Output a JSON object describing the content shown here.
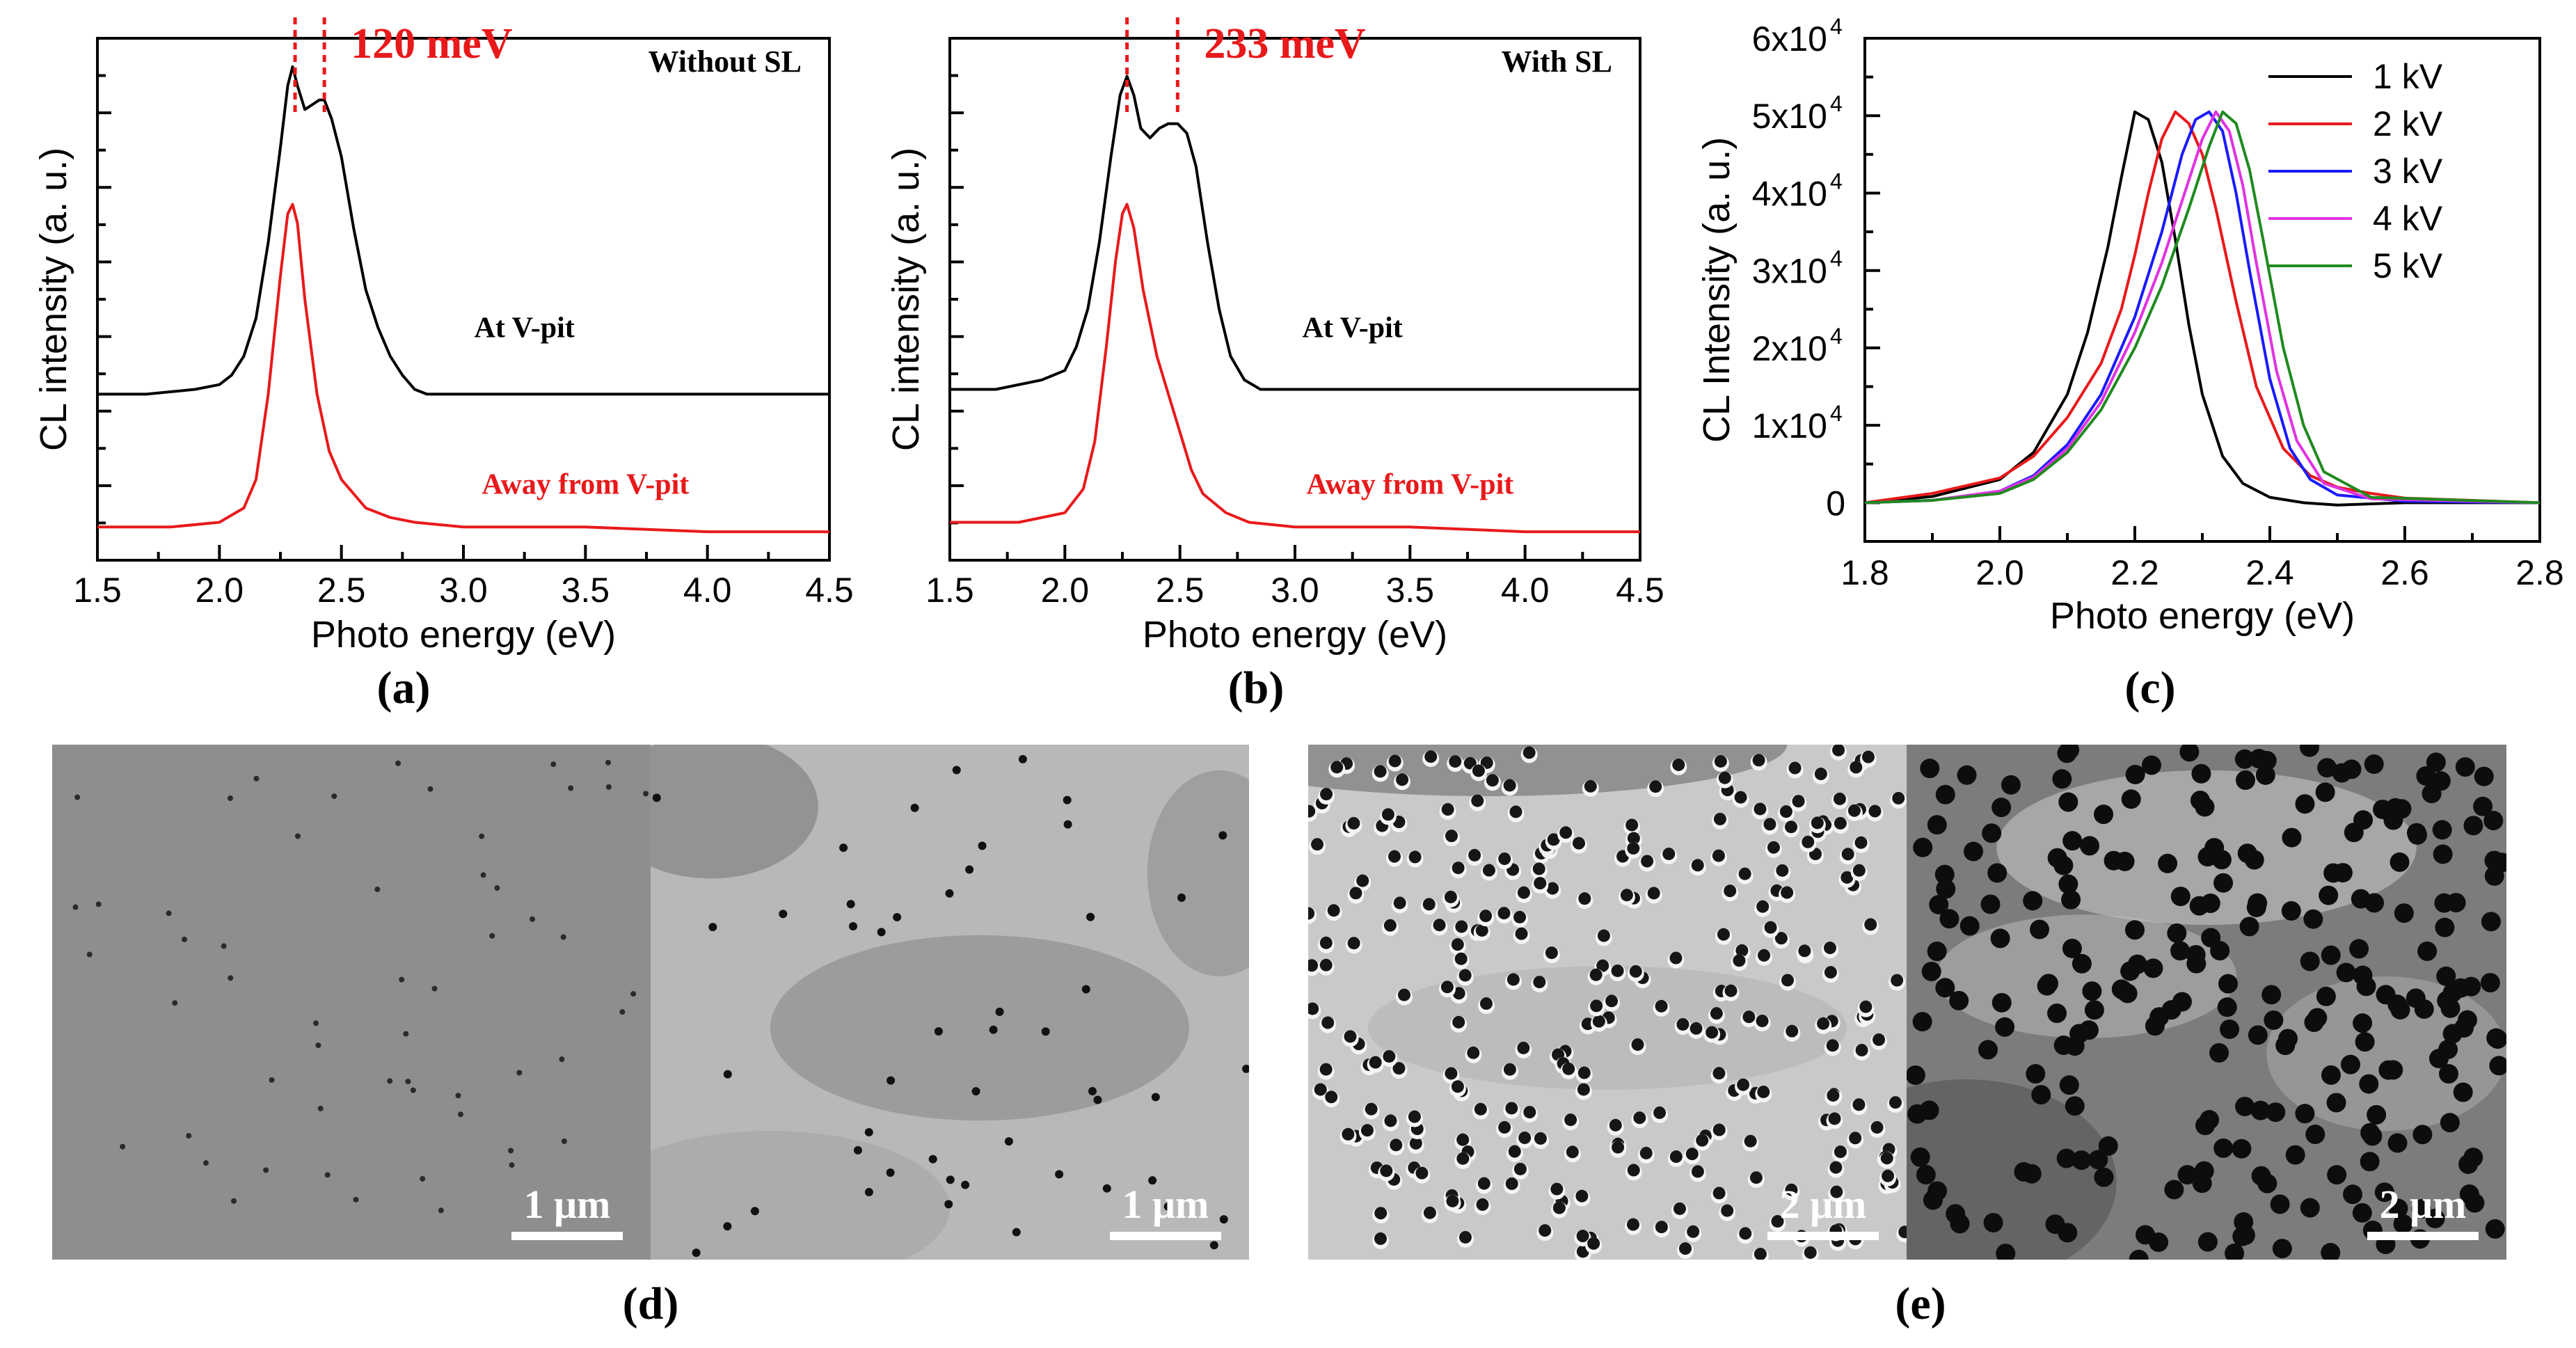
{
  "figure": {
    "panel_labels": {
      "a": "(a)",
      "b": "(b)",
      "c": "(c)",
      "d": "(d)",
      "e": "(e)"
    },
    "scalebars": {
      "d_left": "1 μm",
      "d_right": "1 μm",
      "e_left": "2 μm",
      "e_right": "2 μm"
    },
    "colors": {
      "black": "#000000",
      "red": "#e8191b",
      "blue": "#1a1aff",
      "magenta": "#e033e0",
      "green": "#1f8a1f",
      "annotation_red": "#e8191b"
    }
  },
  "chart_data": [
    {
      "id": "a",
      "type": "line",
      "xlabel": "Photo energy (eV)",
      "ylabel": "CL intensity (a. u.)",
      "xlim": [
        1.5,
        4.5
      ],
      "xticks": [
        "1.5",
        "2.0",
        "2.5",
        "3.0",
        "3.5",
        "4.0",
        "4.5"
      ],
      "title_annotation": "Without SL",
      "peak_marker_text": "120 meV",
      "peak_marker_x": [
        2.31,
        2.43
      ],
      "series": [
        {
          "name": "At V-pit",
          "color": "#000000",
          "x": [
            1.5,
            1.7,
            1.9,
            2.0,
            2.05,
            2.1,
            2.15,
            2.2,
            2.25,
            2.28,
            2.3,
            2.32,
            2.35,
            2.38,
            2.41,
            2.43,
            2.46,
            2.5,
            2.55,
            2.6,
            2.65,
            2.7,
            2.75,
            2.8,
            2.85,
            3.0,
            3.5,
            4.0,
            4.5
          ],
          "y": [
            0.3,
            0.3,
            0.31,
            0.32,
            0.34,
            0.38,
            0.46,
            0.62,
            0.82,
            0.95,
            0.99,
            0.95,
            0.9,
            0.91,
            0.92,
            0.92,
            0.88,
            0.8,
            0.65,
            0.52,
            0.44,
            0.38,
            0.34,
            0.31,
            0.3,
            0.3,
            0.3,
            0.3,
            0.3
          ]
        },
        {
          "name": "Away from V-pit",
          "color": "#e8191b",
          "x": [
            1.5,
            1.8,
            2.0,
            2.1,
            2.15,
            2.2,
            2.25,
            2.28,
            2.3,
            2.32,
            2.35,
            2.4,
            2.45,
            2.5,
            2.6,
            2.7,
            2.8,
            3.0,
            3.5,
            4.0,
            4.5
          ],
          "y": [
            0.02,
            0.02,
            0.03,
            0.06,
            0.12,
            0.3,
            0.55,
            0.68,
            0.7,
            0.66,
            0.5,
            0.3,
            0.18,
            0.12,
            0.06,
            0.04,
            0.03,
            0.02,
            0.02,
            0.01,
            0.01
          ]
        }
      ],
      "labels": {
        "upper": "At V-pit",
        "lower": "Away from V-pit"
      }
    },
    {
      "id": "b",
      "type": "line",
      "xlabel": "Photo energy (eV)",
      "ylabel": "CL intensity (a. u.)",
      "xlim": [
        1.5,
        4.5
      ],
      "xticks": [
        "1.5",
        "2.0",
        "2.5",
        "3.0",
        "3.5",
        "4.0",
        "4.5"
      ],
      "title_annotation": "With SL",
      "peak_marker_text": "233 meV",
      "peak_marker_x": [
        2.27,
        2.49
      ],
      "series": [
        {
          "name": "At V-pit",
          "color": "#000000",
          "x": [
            1.5,
            1.7,
            1.9,
            2.0,
            2.05,
            2.1,
            2.15,
            2.2,
            2.24,
            2.27,
            2.3,
            2.33,
            2.37,
            2.41,
            2.45,
            2.49,
            2.53,
            2.57,
            2.62,
            2.67,
            2.72,
            2.78,
            2.85,
            3.0,
            3.5,
            4.0,
            4.5
          ],
          "y": [
            0.31,
            0.31,
            0.33,
            0.35,
            0.4,
            0.48,
            0.62,
            0.8,
            0.93,
            0.97,
            0.93,
            0.86,
            0.84,
            0.86,
            0.87,
            0.87,
            0.85,
            0.78,
            0.62,
            0.48,
            0.38,
            0.33,
            0.31,
            0.31,
            0.31,
            0.31,
            0.31
          ]
        },
        {
          "name": "Away from V-pit",
          "color": "#e8191b",
          "x": [
            1.5,
            1.8,
            2.0,
            2.08,
            2.13,
            2.18,
            2.22,
            2.25,
            2.27,
            2.3,
            2.34,
            2.4,
            2.45,
            2.5,
            2.55,
            2.6,
            2.7,
            2.8,
            3.0,
            3.5,
            4.0,
            4.5
          ],
          "y": [
            0.03,
            0.03,
            0.05,
            0.1,
            0.2,
            0.4,
            0.58,
            0.68,
            0.7,
            0.65,
            0.52,
            0.38,
            0.3,
            0.22,
            0.14,
            0.09,
            0.05,
            0.03,
            0.02,
            0.02,
            0.01,
            0.01
          ]
        }
      ],
      "labels": {
        "upper": "At V-pit",
        "lower": "Away from V-pit"
      }
    },
    {
      "id": "c",
      "type": "line",
      "xlabel": "Photo energy (eV)",
      "ylabel": "CL Intensity (a. u.)",
      "xlim": [
        1.8,
        2.8
      ],
      "ylim": [
        -5000,
        60000
      ],
      "xticks": [
        "1.8",
        "2.0",
        "2.2",
        "2.4",
        "2.6",
        "2.8"
      ],
      "ytick_values": [
        0,
        10000,
        20000,
        30000,
        40000,
        50000,
        60000
      ],
      "ytick_labels": [
        "0",
        "1x10",
        "2x10",
        "3x10",
        "4x10",
        "5x10",
        "6x10"
      ],
      "ytick_exponent": "4",
      "legend_position": "top-right",
      "series": [
        {
          "name": "1 kV",
          "color": "#000000",
          "x": [
            1.8,
            1.9,
            2.0,
            2.05,
            2.1,
            2.13,
            2.16,
            2.18,
            2.2,
            2.22,
            2.24,
            2.26,
            2.28,
            2.3,
            2.33,
            2.36,
            2.4,
            2.45,
            2.5,
            2.6,
            2.8
          ],
          "y": [
            0,
            800,
            3000,
            6500,
            14000,
            22000,
            33000,
            42000,
            50500,
            49500,
            44000,
            34000,
            23000,
            14000,
            6000,
            2500,
            700,
            0,
            -300,
            0,
            0
          ]
        },
        {
          "name": "2 kV",
          "color": "#e8191b",
          "x": [
            1.8,
            1.9,
            2.0,
            2.05,
            2.1,
            2.15,
            2.18,
            2.2,
            2.22,
            2.24,
            2.26,
            2.28,
            2.3,
            2.32,
            2.35,
            2.38,
            2.42,
            2.46,
            2.5,
            2.55,
            2.6,
            2.8
          ],
          "y": [
            0,
            1200,
            3200,
            6000,
            11000,
            18000,
            25000,
            32000,
            40000,
            47000,
            50500,
            49000,
            45000,
            38000,
            26000,
            15000,
            7000,
            3500,
            2000,
            1200,
            600,
            0
          ]
        },
        {
          "name": "3 kV",
          "color": "#1a1aff",
          "x": [
            1.8,
            1.9,
            2.0,
            2.05,
            2.1,
            2.15,
            2.2,
            2.24,
            2.27,
            2.29,
            2.31,
            2.33,
            2.35,
            2.37,
            2.4,
            2.43,
            2.46,
            2.5,
            2.6,
            2.8
          ],
          "y": [
            0,
            300,
            1500,
            3500,
            7500,
            14000,
            24000,
            35000,
            45000,
            49500,
            50500,
            48000,
            40000,
            30000,
            16000,
            7000,
            3000,
            1000,
            200,
            0
          ]
        },
        {
          "name": "4 kV",
          "color": "#e033e0",
          "x": [
            1.8,
            1.9,
            2.0,
            2.05,
            2.1,
            2.15,
            2.2,
            2.24,
            2.27,
            2.3,
            2.32,
            2.34,
            2.36,
            2.38,
            2.41,
            2.44,
            2.48,
            2.55,
            2.8
          ],
          "y": [
            0,
            300,
            1500,
            3300,
            7000,
            13000,
            22000,
            31000,
            39000,
            47000,
            50500,
            48000,
            41000,
            31000,
            17000,
            8000,
            2500,
            500,
            0
          ]
        },
        {
          "name": "5 kV",
          "color": "#1f8a1f",
          "x": [
            1.8,
            1.9,
            2.0,
            2.05,
            2.1,
            2.15,
            2.2,
            2.24,
            2.28,
            2.31,
            2.33,
            2.35,
            2.37,
            2.39,
            2.42,
            2.45,
            2.48,
            2.55,
            2.8
          ],
          "y": [
            0,
            300,
            1200,
            3000,
            6500,
            12000,
            20000,
            28000,
            38000,
            46000,
            50500,
            49000,
            43000,
            34000,
            20000,
            10000,
            4000,
            700,
            0
          ]
        }
      ]
    }
  ]
}
